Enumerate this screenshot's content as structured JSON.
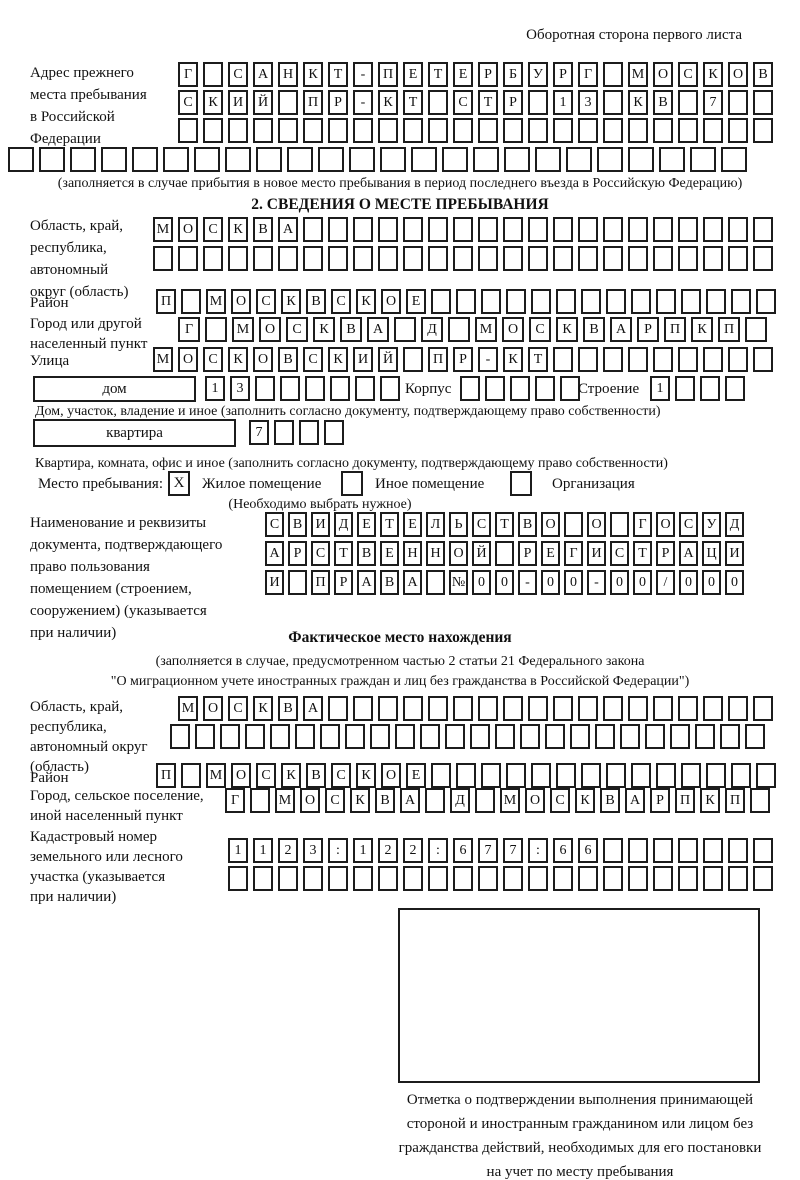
{
  "header": {
    "title": "Оборотная сторона первого листа"
  },
  "prev_address": {
    "label_lines": [
      "Адрес прежнего",
      "места пребывания",
      "в Российской",
      "Федерации"
    ],
    "rows": [
      {
        "text": "Г САНКТ-ПЕТЕРБУРГ МОСКОВ",
        "n": 24
      },
      {
        "text": "СКИЙ ПР-КТ СТР 13 КВ 7",
        "n": 24
      },
      {
        "text": "",
        "n": 24
      },
      {
        "text": "",
        "n": 24
      }
    ],
    "note": "(заполняется в случае прибытия в новое место пребывания в период последнего въезда в Российскую Федерацию)"
  },
  "section2": {
    "title": "2. СВЕДЕНИЯ О МЕСТЕ ПРЕБЫВАНИЯ",
    "oblast": {
      "label_lines": [
        "Область, край,",
        "республика,",
        "автономный",
        "округ (область)"
      ],
      "rows": [
        {
          "text": "МОСКВА",
          "n": 25
        },
        {
          "text": "",
          "n": 25
        }
      ]
    },
    "raion": {
      "label": "Район",
      "row": {
        "text": "П МОСКВСКОЕ",
        "n": 25
      }
    },
    "gorod": {
      "label_lines": [
        "Город или другой",
        "населенный пункт"
      ],
      "row": {
        "text": "Г МОСКВА Д МОСКВАРПКП",
        "n": 22
      }
    },
    "ulitsa": {
      "label": "Улица",
      "row": {
        "text": "МОСКОВСКИЙ ПР-КТ",
        "n": 25
      }
    },
    "dom": {
      "box_label": "дом",
      "cells": {
        "text": "13",
        "n": 8
      },
      "korpus_label": "Корпус",
      "korpus_cells": {
        "text": "",
        "n": 5
      },
      "stroenie_label": "Строение",
      "stroenie_cells": {
        "text": "1",
        "n": 4
      }
    },
    "dom_note": "Дом, участок, владение и иное (заполнить согласно документу, подтверждающему право собственности)",
    "kvartira": {
      "box_label": "квартира",
      "cells": {
        "text": "7",
        "n": 4
      }
    },
    "kvartira_note": "Квартира, комната, офис и иное (заполнить согласно документу, подтверждающему право собственности)",
    "mesto": {
      "label": "Место пребывания:",
      "options": [
        {
          "label": "Жилое помещение",
          "mark": "X"
        },
        {
          "label": "Иное помещение",
          "mark": ""
        },
        {
          "label": "Организация",
          "mark": ""
        }
      ],
      "note": "(Необходимо выбрать нужное)"
    },
    "document": {
      "label_lines": [
        "Наименование и реквизиты",
        "документа, подтверждающего",
        "право пользования",
        "помещением (строением,",
        "сооружением) (указывается",
        "при наличии)"
      ],
      "rows": [
        {
          "text": "СВИДЕТЕЛЬСТВО О ГОСУД",
          "n": 21
        },
        {
          "text": "АРСТВЕННОЙ РЕГИСТРАЦИ",
          "n": 21
        },
        {
          "text": "И ПРАВА №00-00-00/000",
          "n": 21
        }
      ]
    }
  },
  "fact": {
    "title": "Фактическое место нахождения",
    "note_lines": [
      "(заполняется в случае, предусмотренном частью 2 статьи 21 Федерального закона",
      "\"О миграционном учете иностранных граждан и лиц без гражданства в Российской Федерации\")"
    ],
    "oblast": {
      "label_lines": [
        "Область, край,",
        "республика,",
        "автономный округ",
        "(область)"
      ],
      "rows": [
        {
          "text": "МОСКВА",
          "n": 24
        },
        {
          "text": "",
          "n": 24
        }
      ]
    },
    "raion": {
      "label": "Район",
      "row": {
        "text": "П МОСКВСКОЕ",
        "n": 25
      }
    },
    "gorod": {
      "label_lines": [
        "Город, сельское поселение,",
        "иной населенный пункт"
      ],
      "row": {
        "text": "Г МОСКВА Д МОСКВАРПКП",
        "n": 22
      }
    },
    "kadastr": {
      "label_lines": [
        "Кадастровый номер",
        "земельного или лесного",
        "участка (указывается",
        "при наличии)"
      ],
      "rows": [
        {
          "text": "1123:122:677:66",
          "n": 22
        },
        {
          "text": "",
          "n": 22
        }
      ]
    }
  },
  "stamp": {
    "caption_lines": [
      "Отметка о подтверждении выполнения принимающей",
      "стороной и иностранным гражданином или лицом без",
      "гражданства действий, необходимых для его постановки",
      "на учет по месту пребывания"
    ]
  }
}
